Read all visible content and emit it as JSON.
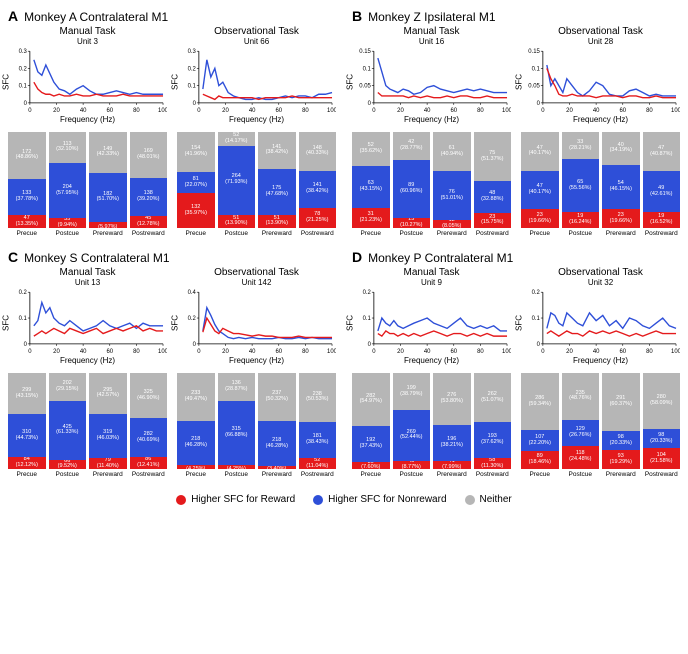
{
  "colors": {
    "reward": "#e41a1c",
    "nonreward": "#2e4fd8",
    "neither": "#b6b6b6",
    "axis": "#000000",
    "bg": "#ffffff"
  },
  "typography": {
    "panel_letter_pt": 14,
    "panel_title_pt": 12,
    "task_title_pt": 10,
    "unit_title_pt": 8,
    "axis_label_pt": 8,
    "bar_value_pt": 5.5,
    "bar_label_pt": 6.5,
    "legend_pt": 10,
    "font_family": "Arial"
  },
  "axis": {
    "xlabel": "Frequency (Hz)",
    "ylabel": "SFC",
    "xlim": [
      0,
      100
    ],
    "xticks": [
      0,
      20,
      40,
      60,
      80,
      100
    ],
    "line_width": 1.4
  },
  "epochs": [
    "Precue",
    "Postcue",
    "Prereward",
    "Postreward"
  ],
  "legend": {
    "reward": "Higher SFC for Reward",
    "nonreward": "Higher SFC for Nonreward",
    "neither": "Neither"
  },
  "panels": {
    "A": {
      "letter": "A",
      "title": "Monkey A Contralateral M1",
      "manual": {
        "task_title": "Manual Task",
        "unit": "Unit 3",
        "ylim": [
          0,
          0.3
        ],
        "yticks": [
          0,
          0.1,
          0.2,
          0.3
        ],
        "x": [
          3,
          6,
          9,
          12,
          15,
          18,
          22,
          26,
          30,
          35,
          40,
          45,
          50,
          55,
          60,
          65,
          70,
          75,
          80,
          85,
          90,
          95,
          100
        ],
        "reward": [
          0.12,
          0.08,
          0.06,
          0.05,
          0.05,
          0.04,
          0.05,
          0.04,
          0.04,
          0.05,
          0.04,
          0.04,
          0.05,
          0.04,
          0.04,
          0.04,
          0.05,
          0.04,
          0.04,
          0.04,
          0.04,
          0.04,
          0.04
        ],
        "nonreward": [
          0.25,
          0.18,
          0.16,
          0.22,
          0.17,
          0.12,
          0.08,
          0.07,
          0.05,
          0.08,
          0.1,
          0.07,
          0.05,
          0.05,
          0.06,
          0.07,
          0.06,
          0.05,
          0.06,
          0.05,
          0.05,
          0.05,
          0.05
        ],
        "bars": [
          {
            "reward_n": 47,
            "reward_pct": 13.35,
            "nonreward_n": 133,
            "nonreward_pct": 37.78,
            "neither_n": 172,
            "neither_pct": 48.86
          },
          {
            "reward_n": 35,
            "reward_pct": 9.94,
            "nonreward_n": 204,
            "nonreward_pct": 57.95,
            "neither_n": 113,
            "neither_pct": 32.1
          },
          {
            "reward_n": 21,
            "reward_pct": 5.97,
            "nonreward_n": 182,
            "nonreward_pct": 51.7,
            "neither_n": 149,
            "neither_pct": 42.33
          },
          {
            "reward_n": 45,
            "reward_pct": 12.78,
            "nonreward_n": 138,
            "nonreward_pct": 39.2,
            "neither_n": 169,
            "neither_pct": 48.01
          }
        ]
      },
      "observational": {
        "task_title": "Observational Task",
        "unit": "Unit 66",
        "ylim": [
          0,
          0.3
        ],
        "yticks": [
          0,
          0.1,
          0.2,
          0.3
        ],
        "x": [
          3,
          6,
          9,
          12,
          15,
          18,
          22,
          26,
          30,
          35,
          40,
          45,
          50,
          55,
          60,
          65,
          70,
          75,
          80,
          85,
          90,
          95,
          100
        ],
        "reward": [
          0.05,
          0.04,
          0.03,
          0.02,
          0.04,
          0.03,
          0.03,
          0.03,
          0.03,
          0.03,
          0.03,
          0.02,
          0.03,
          0.03,
          0.03,
          0.03,
          0.04,
          0.03,
          0.03,
          0.03,
          0.03,
          0.03,
          0.03
        ],
        "nonreward": [
          0.08,
          0.25,
          0.15,
          0.2,
          0.1,
          0.12,
          0.06,
          0.04,
          0.03,
          0.02,
          0.02,
          0.03,
          0.02,
          0.02,
          0.03,
          0.04,
          0.03,
          0.04,
          0.04,
          0.03,
          0.05,
          0.05,
          0.06
        ],
        "bars": [
          {
            "reward_n": 132,
            "reward_pct": 35.97,
            "nonreward_n": 81,
            "nonreward_pct": 22.07,
            "neither_n": 154,
            "neither_pct": 41.96
          },
          {
            "reward_n": 51,
            "reward_pct": 13.9,
            "nonreward_n": 264,
            "nonreward_pct": 71.93,
            "neither_n": 52,
            "neither_pct": 14.17
          },
          {
            "reward_n": 51,
            "reward_pct": 13.9,
            "nonreward_n": 175,
            "nonreward_pct": 47.68,
            "neither_n": 141,
            "neither_pct": 38.42
          },
          {
            "reward_n": 78,
            "reward_pct": 21.25,
            "nonreward_n": 141,
            "nonreward_pct": 38.42,
            "neither_n": 148,
            "neither_pct": 40.33
          }
        ]
      }
    },
    "B": {
      "letter": "B",
      "title": "Monkey Z Ipsilateral M1",
      "manual": {
        "task_title": "Manual Task",
        "unit": "Unit 16",
        "ylim": [
          0,
          0.15
        ],
        "yticks": [
          0,
          0.05,
          0.1,
          0.15
        ],
        "x": [
          3,
          6,
          9,
          12,
          15,
          18,
          22,
          26,
          30,
          35,
          40,
          45,
          50,
          55,
          60,
          65,
          70,
          75,
          80,
          85,
          90,
          95,
          100
        ],
        "reward": [
          0.03,
          0.02,
          0.02,
          0.02,
          0.02,
          0.02,
          0.02,
          0.015,
          0.02,
          0.015,
          0.02,
          0.015,
          0.015,
          0.02,
          0.015,
          0.02,
          0.02,
          0.015,
          0.015,
          0.02,
          0.015,
          0.015,
          0.015
        ],
        "nonreward": [
          0.13,
          0.09,
          0.05,
          0.04,
          0.035,
          0.03,
          0.04,
          0.035,
          0.025,
          0.03,
          0.045,
          0.05,
          0.04,
          0.035,
          0.03,
          0.035,
          0.04,
          0.035,
          0.04,
          0.035,
          0.03,
          0.03,
          0.03
        ],
        "bars": [
          {
            "reward_n": 31,
            "reward_pct": 21.23,
            "nonreward_n": 63,
            "nonreward_pct": 43.15,
            "neither_n": 52,
            "neither_pct": 35.62
          },
          {
            "reward_n": 15,
            "reward_pct": 10.27,
            "nonreward_n": 89,
            "nonreward_pct": 60.96,
            "neither_n": 42,
            "neither_pct": 28.77
          },
          {
            "reward_n": 12,
            "reward_pct": 8.05,
            "nonreward_n": 76,
            "nonreward_pct": 51.01,
            "neither_n": 61,
            "neither_pct": 40.94
          },
          {
            "reward_n": 23,
            "reward_pct": 15.75,
            "nonreward_n": 48,
            "nonreward_pct": 32.88,
            "neither_n": 75,
            "neither_pct": 51.37
          }
        ]
      },
      "observational": {
        "task_title": "Observational Task",
        "unit": "Unit 28",
        "ylim": [
          0,
          0.15
        ],
        "yticks": [
          0,
          0.05,
          0.1,
          0.15
        ],
        "x": [
          3,
          6,
          9,
          12,
          15,
          18,
          22,
          26,
          30,
          35,
          40,
          45,
          50,
          55,
          60,
          65,
          70,
          75,
          80,
          85,
          90,
          95,
          100
        ],
        "reward": [
          0.1,
          0.07,
          0.05,
          0.025,
          0.02,
          0.02,
          0.025,
          0.02,
          0.02,
          0.02,
          0.015,
          0.02,
          0.02,
          0.02,
          0.015,
          0.02,
          0.02,
          0.015,
          0.015,
          0.02,
          0.015,
          0.015,
          0.015
        ],
        "nonreward": [
          0.11,
          0.05,
          0.07,
          0.05,
          0.03,
          0.07,
          0.05,
          0.03,
          0.02,
          0.035,
          0.06,
          0.05,
          0.025,
          0.02,
          0.02,
          0.035,
          0.04,
          0.03,
          0.02,
          0.025,
          0.02,
          0.02,
          0.02
        ],
        "bars": [
          {
            "reward_n": 23,
            "reward_pct": 19.66,
            "nonreward_n": 47,
            "nonreward_pct": 40.17,
            "neither_n": 47,
            "neither_pct": 40.17
          },
          {
            "reward_n": 19,
            "reward_pct": 16.24,
            "nonreward_n": 65,
            "nonreward_pct": 55.56,
            "neither_n": 33,
            "neither_pct": 28.21
          },
          {
            "reward_n": 23,
            "reward_pct": 19.66,
            "nonreward_n": 54,
            "nonreward_pct": 46.15,
            "neither_n": 40,
            "neither_pct": 34.19
          },
          {
            "reward_n": 19,
            "reward_pct": 16.52,
            "nonreward_n": 49,
            "nonreward_pct": 42.61,
            "neither_n": 47,
            "neither_pct": 40.87
          }
        ]
      }
    },
    "C": {
      "letter": "C",
      "title": "Monkey S Contralateral M1",
      "manual": {
        "task_title": "Manual Task",
        "unit": "Unit 13",
        "ylim": [
          0,
          0.2
        ],
        "yticks": [
          0,
          0.1,
          0.2
        ],
        "x": [
          3,
          6,
          9,
          12,
          15,
          18,
          22,
          26,
          30,
          35,
          40,
          45,
          50,
          55,
          60,
          65,
          70,
          75,
          80,
          85,
          90,
          95,
          100
        ],
        "reward": [
          0.03,
          0.04,
          0.05,
          0.04,
          0.05,
          0.06,
          0.05,
          0.04,
          0.06,
          0.05,
          0.04,
          0.05,
          0.06,
          0.04,
          0.05,
          0.06,
          0.05,
          0.06,
          0.07,
          0.05,
          0.06,
          0.05,
          0.05
        ],
        "nonreward": [
          0.07,
          0.09,
          0.16,
          0.12,
          0.14,
          0.1,
          0.08,
          0.07,
          0.09,
          0.07,
          0.05,
          0.06,
          0.07,
          0.09,
          0.07,
          0.06,
          0.07,
          0.08,
          0.06,
          0.08,
          0.07,
          0.07,
          0.07
        ],
        "bars": [
          {
            "reward_n": 84,
            "reward_pct": 12.12,
            "nonreward_n": 310,
            "nonreward_pct": 44.73,
            "neither_n": 299,
            "neither_pct": 43.15
          },
          {
            "reward_n": 66,
            "reward_pct": 9.52,
            "nonreward_n": 425,
            "nonreward_pct": 61.33,
            "neither_n": 202,
            "neither_pct": 29.15
          },
          {
            "reward_n": 79,
            "reward_pct": 11.4,
            "nonreward_n": 319,
            "nonreward_pct": 46.03,
            "neither_n": 295,
            "neither_pct": 42.57
          },
          {
            "reward_n": 86,
            "reward_pct": 12.41,
            "nonreward_n": 282,
            "nonreward_pct": 40.69,
            "neither_n": 325,
            "neither_pct": 46.9
          }
        ]
      },
      "observational": {
        "task_title": "Observational Task",
        "unit": "Unit 142",
        "ylim": [
          0,
          0.4
        ],
        "yticks": [
          0,
          0.2,
          0.4
        ],
        "x": [
          3,
          6,
          9,
          12,
          15,
          18,
          22,
          26,
          30,
          35,
          40,
          45,
          50,
          55,
          60,
          65,
          70,
          75,
          80,
          85,
          90,
          95,
          100
        ],
        "reward": [
          0.09,
          0.2,
          0.15,
          0.1,
          0.08,
          0.12,
          0.1,
          0.08,
          0.08,
          0.07,
          0.06,
          0.07,
          0.06,
          0.06,
          0.05,
          0.05,
          0.05,
          0.06,
          0.05,
          0.05,
          0.05,
          0.05,
          0.05
        ],
        "nonreward": [
          0.1,
          0.28,
          0.22,
          0.15,
          0.1,
          0.08,
          0.05,
          0.04,
          0.05,
          0.04,
          0.05,
          0.04,
          0.04,
          0.04,
          0.05,
          0.04,
          0.04,
          0.05,
          0.04,
          0.05,
          0.04,
          0.04,
          0.04
        ],
        "bars": [
          {
            "reward_n": 20,
            "reward_pct": 4.25,
            "nonreward_n": 218,
            "nonreward_pct": 46.28,
            "neither_n": 233,
            "neither_pct": 49.47
          },
          {
            "reward_n": 20,
            "reward_pct": 4.25,
            "nonreward_n": 315,
            "nonreward_pct": 66.88,
            "neither_n": 136,
            "neither_pct": 28.87
          },
          {
            "reward_n": 16,
            "reward_pct": 3.4,
            "nonreward_n": 218,
            "nonreward_pct": 46.28,
            "neither_n": 237,
            "neither_pct": 50.32
          },
          {
            "reward_n": 52,
            "reward_pct": 11.04,
            "nonreward_n": 181,
            "nonreward_pct": 38.43,
            "neither_n": 238,
            "neither_pct": 50.53
          }
        ]
      }
    },
    "D": {
      "letter": "D",
      "title": "Monkey P Contralateral M1",
      "manual": {
        "task_title": "Manual Task",
        "unit": "Unit 9",
        "ylim": [
          0,
          0.2
        ],
        "yticks": [
          0,
          0.1,
          0.2
        ],
        "x": [
          3,
          6,
          9,
          12,
          15,
          18,
          22,
          26,
          30,
          35,
          40,
          45,
          50,
          55,
          60,
          65,
          70,
          75,
          80,
          85,
          90,
          95,
          100
        ],
        "reward": [
          0.04,
          0.03,
          0.05,
          0.04,
          0.04,
          0.03,
          0.04,
          0.03,
          0.04,
          0.03,
          0.04,
          0.05,
          0.04,
          0.03,
          0.04,
          0.04,
          0.03,
          0.04,
          0.03,
          0.04,
          0.03,
          0.03,
          0.03
        ],
        "nonreward": [
          0.05,
          0.1,
          0.08,
          0.07,
          0.09,
          0.07,
          0.06,
          0.07,
          0.08,
          0.09,
          0.1,
          0.08,
          0.07,
          0.06,
          0.08,
          0.1,
          0.07,
          0.06,
          0.07,
          0.06,
          0.07,
          0.05,
          0.05
        ],
        "bars": [
          {
            "reward_n": 39,
            "reward_pct": 7.6,
            "nonreward_n": 192,
            "nonreward_pct": 37.43,
            "neither_n": 282,
            "neither_pct": 54.97
          },
          {
            "reward_n": 45,
            "reward_pct": 8.77,
            "nonreward_n": 269,
            "nonreward_pct": 52.44,
            "neither_n": 199,
            "neither_pct": 38.79
          },
          {
            "reward_n": 41,
            "reward_pct": 7.99,
            "nonreward_n": 196,
            "nonreward_pct": 38.21,
            "neither_n": 276,
            "neither_pct": 53.8
          },
          {
            "reward_n": 58,
            "reward_pct": 11.3,
            "nonreward_n": 193,
            "nonreward_pct": 37.62,
            "neither_n": 262,
            "neither_pct": 51.07
          }
        ]
      },
      "observational": {
        "task_title": "Observational Task",
        "unit": "Unit 32",
        "ylim": [
          0,
          0.2
        ],
        "yticks": [
          0,
          0.1,
          0.2
        ],
        "x": [
          3,
          6,
          9,
          12,
          15,
          18,
          22,
          26,
          30,
          35,
          40,
          45,
          50,
          55,
          60,
          65,
          70,
          75,
          80,
          85,
          90,
          95,
          100
        ],
        "reward": [
          0.04,
          0.05,
          0.04,
          0.03,
          0.04,
          0.05,
          0.04,
          0.04,
          0.03,
          0.05,
          0.04,
          0.05,
          0.04,
          0.05,
          0.04,
          0.03,
          0.04,
          0.03,
          0.04,
          0.05,
          0.04,
          0.04,
          0.04
        ],
        "nonreward": [
          0.06,
          0.12,
          0.11,
          0.08,
          0.07,
          0.12,
          0.1,
          0.08,
          0.07,
          0.12,
          0.09,
          0.11,
          0.07,
          0.09,
          0.06,
          0.1,
          0.09,
          0.07,
          0.06,
          0.08,
          0.1,
          0.07,
          0.06
        ],
        "bars": [
          {
            "reward_n": 89,
            "reward_pct": 18.46,
            "nonreward_n": 107,
            "nonreward_pct": 22.2,
            "neither_n": 286,
            "neither_pct": 59.34
          },
          {
            "reward_n": 118,
            "reward_pct": 24.48,
            "nonreward_n": 129,
            "nonreward_pct": 26.76,
            "neither_n": 235,
            "neither_pct": 48.76
          },
          {
            "reward_n": 93,
            "reward_pct": 19.29,
            "nonreward_n": 98,
            "nonreward_pct": 20.33,
            "neither_n": 291,
            "neither_pct": 60.37
          },
          {
            "reward_n": 104,
            "reward_pct": 21.58,
            "nonreward_n": 98,
            "nonreward_pct": 20.33,
            "neither_n": 280,
            "neither_pct": 58.09
          }
        ]
      }
    }
  }
}
